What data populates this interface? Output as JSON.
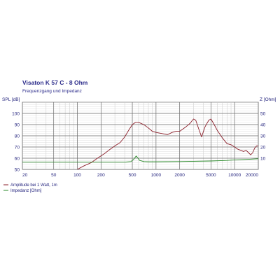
{
  "chart_data": {
    "type": "line",
    "title": "Visaton K 57 C - 8 Ohm",
    "subtitle": "Frequenzgang und Impedanz",
    "x_scale": "log",
    "xlim": [
      20,
      20000
    ],
    "x_ticks": [
      20,
      50,
      100,
      200,
      500,
      1000,
      2000,
      5000,
      10000,
      20000
    ],
    "x_tick_labels": [
      "20",
      "50",
      "100",
      "200",
      "500",
      "1000",
      "2000",
      "5000",
      "10000",
      "20000"
    ],
    "y_left_label": "SPL [dB]",
    "ylim_left": [
      50,
      110
    ],
    "y_left_ticks": [
      50,
      60,
      70,
      80,
      90,
      100
    ],
    "y_right_label": "Z [Ohm]",
    "ylim_right": [
      0,
      60
    ],
    "y_right_ticks": [
      10,
      20,
      30,
      40,
      50
    ],
    "grid": true,
    "series": [
      {
        "name": "Amplitude bei 1 Watt, 1m",
        "axis": "left",
        "color": "#8b1f2a",
        "points": [
          [
            100,
            50
          ],
          [
            120,
            53
          ],
          [
            150,
            56
          ],
          [
            180,
            60
          ],
          [
            220,
            64
          ],
          [
            250,
            67
          ],
          [
            300,
            71
          ],
          [
            350,
            74
          ],
          [
            400,
            79
          ],
          [
            450,
            85
          ],
          [
            500,
            90
          ],
          [
            550,
            92
          ],
          [
            600,
            92
          ],
          [
            700,
            90
          ],
          [
            800,
            87
          ],
          [
            900,
            84
          ],
          [
            1000,
            83
          ],
          [
            1200,
            82
          ],
          [
            1400,
            81
          ],
          [
            1600,
            83
          ],
          [
            1800,
            84
          ],
          [
            2000,
            84
          ],
          [
            2400,
            88
          ],
          [
            2700,
            91
          ],
          [
            3000,
            95
          ],
          [
            3200,
            94
          ],
          [
            3500,
            86
          ],
          [
            3800,
            79
          ],
          [
            4200,
            88
          ],
          [
            4700,
            94
          ],
          [
            5000,
            95
          ],
          [
            5500,
            90
          ],
          [
            6000,
            85
          ],
          [
            7000,
            78
          ],
          [
            8000,
            73
          ],
          [
            9000,
            72
          ],
          [
            10000,
            70
          ],
          [
            11000,
            68
          ],
          [
            12000,
            67
          ],
          [
            13000,
            66
          ],
          [
            14000,
            67
          ],
          [
            15000,
            65
          ],
          [
            16000,
            63
          ],
          [
            17000,
            65
          ],
          [
            18000,
            69
          ],
          [
            19000,
            71
          ],
          [
            20000,
            71
          ]
        ]
      },
      {
        "name": "Impedanz [Ohm]",
        "axis": "right",
        "color": "#2a8a2a",
        "points": [
          [
            20,
            6.5
          ],
          [
            100,
            6.5
          ],
          [
            200,
            6.5
          ],
          [
            400,
            6.5
          ],
          [
            480,
            7
          ],
          [
            520,
            9
          ],
          [
            560,
            12
          ],
          [
            590,
            10
          ],
          [
            620,
            8
          ],
          [
            700,
            7
          ],
          [
            800,
            6.8
          ],
          [
            1000,
            6.8
          ],
          [
            2000,
            7
          ],
          [
            3000,
            7.2
          ],
          [
            5000,
            7.5
          ],
          [
            8000,
            8
          ],
          [
            10000,
            8.5
          ],
          [
            15000,
            9
          ],
          [
            20000,
            9.5
          ]
        ]
      }
    ],
    "legend_position": "bottom-left"
  }
}
